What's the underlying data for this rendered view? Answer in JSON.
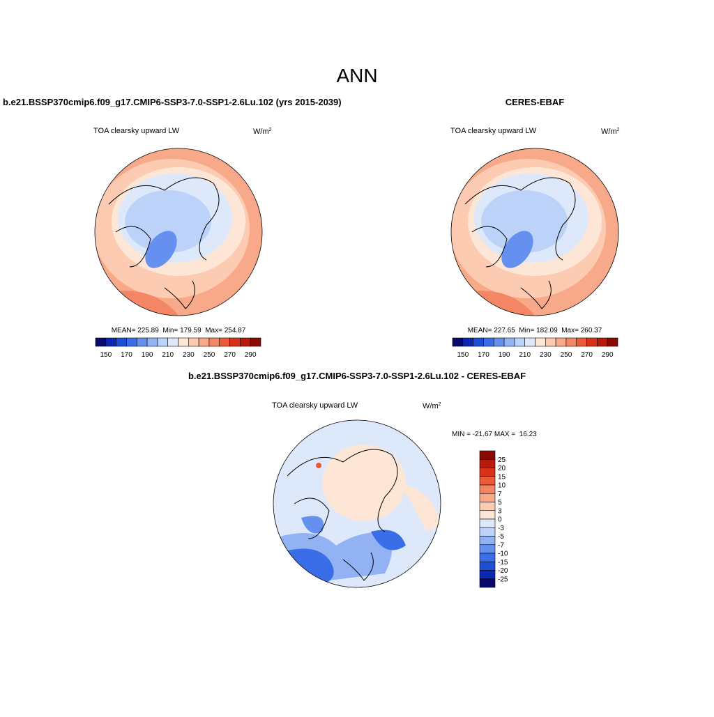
{
  "header": {
    "title": "ANN"
  },
  "panels": [
    {
      "title": "b.e21.BSSP370cmip6.f09_g17.CMIP6-SSP3-7.0-SSP1-2.6Lu.102 (yrs 2015-2039)",
      "variable": "TOA clearsky upward LW",
      "units": "W/m",
      "units_sup": "2",
      "stats": "MEAN= 225.89  Min= 179.59  Max= 254.87"
    },
    {
      "title": "CERES-EBAF",
      "variable": "TOA clearsky upward LW",
      "units": "W/m",
      "units_sup": "2",
      "stats": "MEAN= 227.65  Min= 182.09  Max= 260.37"
    }
  ],
  "colorbar": {
    "labels": [
      150,
      170,
      190,
      210,
      230,
      250,
      270,
      290
    ],
    "colors": [
      "#08086e",
      "#0a28b4",
      "#1a4fd6",
      "#3a6ee8",
      "#6690ef",
      "#93b2f4",
      "#bdd2f8",
      "#dde9fa",
      "#fde6d6",
      "#fccbb2",
      "#f8a98a",
      "#f48665",
      "#ec5a3a",
      "#d83218",
      "#b81a0c",
      "#8c0a04"
    ]
  },
  "difference": {
    "title": "b.e21.BSSP370cmip6.f09_g17.CMIP6-SSP3-7.0-SSP1-2.6Lu.102 - CERES-EBAF",
    "variable": "TOA clearsky upward LW",
    "units": "W/m",
    "units_sup": "2",
    "stats": "MIN = -21.67 MAX =  16.23",
    "colorbar": {
      "labels": [
        25,
        20,
        15,
        10,
        7,
        5,
        3,
        0,
        -3,
        -5,
        -7,
        -10,
        -15,
        -20,
        -25
      ],
      "colors": [
        "#8c0a04",
        "#b81a0c",
        "#d83218",
        "#ec5a3a",
        "#f48665",
        "#f8a98a",
        "#fccbb2",
        "#fde6d6",
        "#dde9fa",
        "#bdd2f8",
        "#93b2f4",
        "#6690ef",
        "#3a6ee8",
        "#1a4fd6",
        "#0a28b4",
        "#08086e"
      ]
    }
  }
}
